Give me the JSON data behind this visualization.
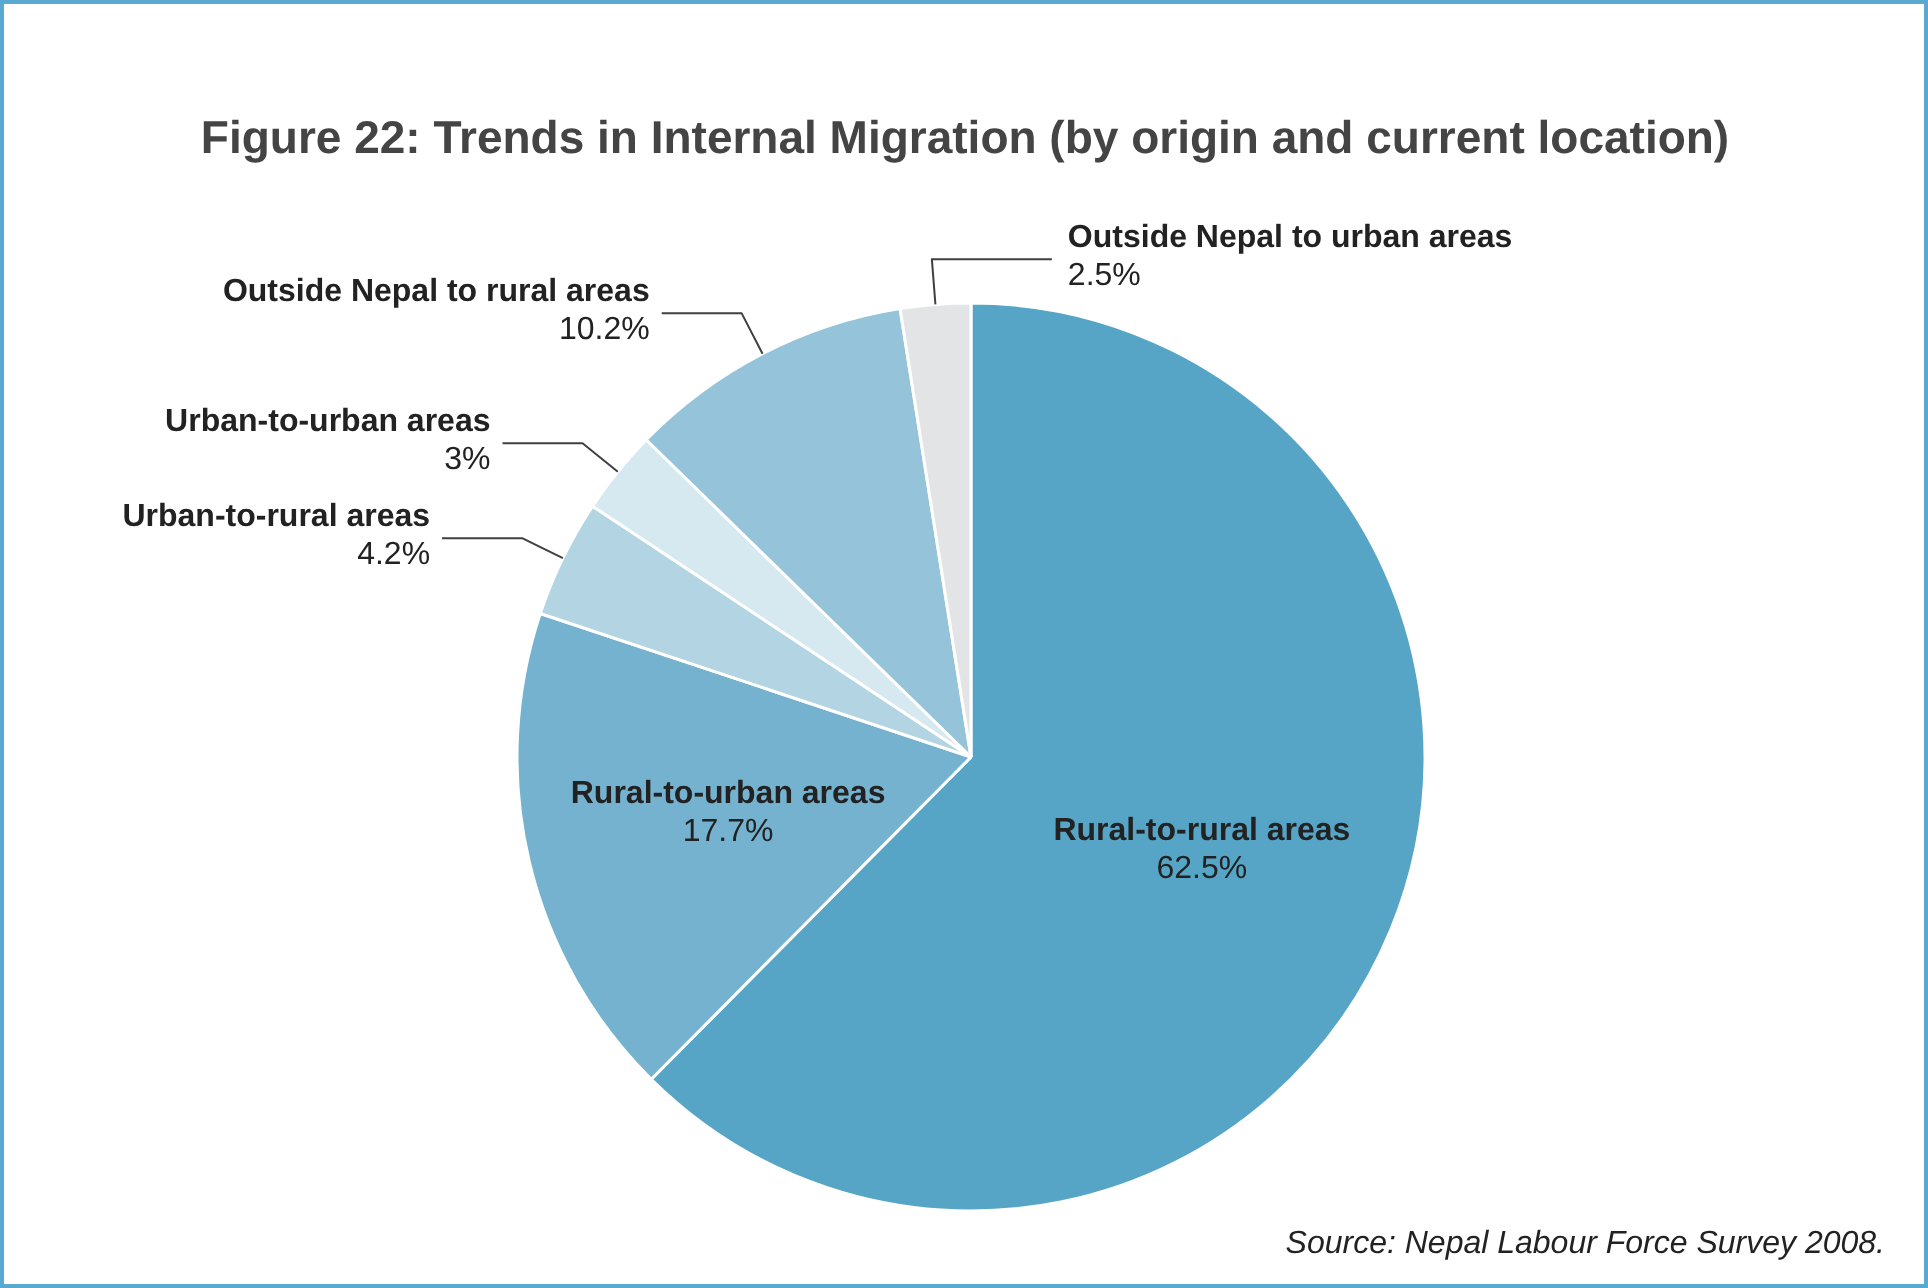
{
  "chart_data": {
    "type": "pie",
    "title": "Figure 22: Trends in Internal Migration (by origin and current location)",
    "categories": [
      "Rural-to-rural areas",
      "Rural-to-urban areas",
      "Urban-to-rural areas",
      "Urban-to-urban areas",
      "Outside Nepal to rural areas",
      "Outside Nepal to urban areas"
    ],
    "values": [
      62.5,
      17.7,
      4.2,
      3,
      10.2,
      2.5
    ],
    "colors": [
      "#57a5c6",
      "#74b2cf",
      "#b3d4e3",
      "#d6e8f0",
      "#95c3da",
      "#e2e4e6"
    ],
    "value_labels": [
      "62.5%",
      "17.7%",
      "4.2%",
      "3%",
      "10.2%",
      "2.5%"
    ],
    "annotations": [
      "Source: Nepal Labour Force Survey 2008."
    ]
  }
}
